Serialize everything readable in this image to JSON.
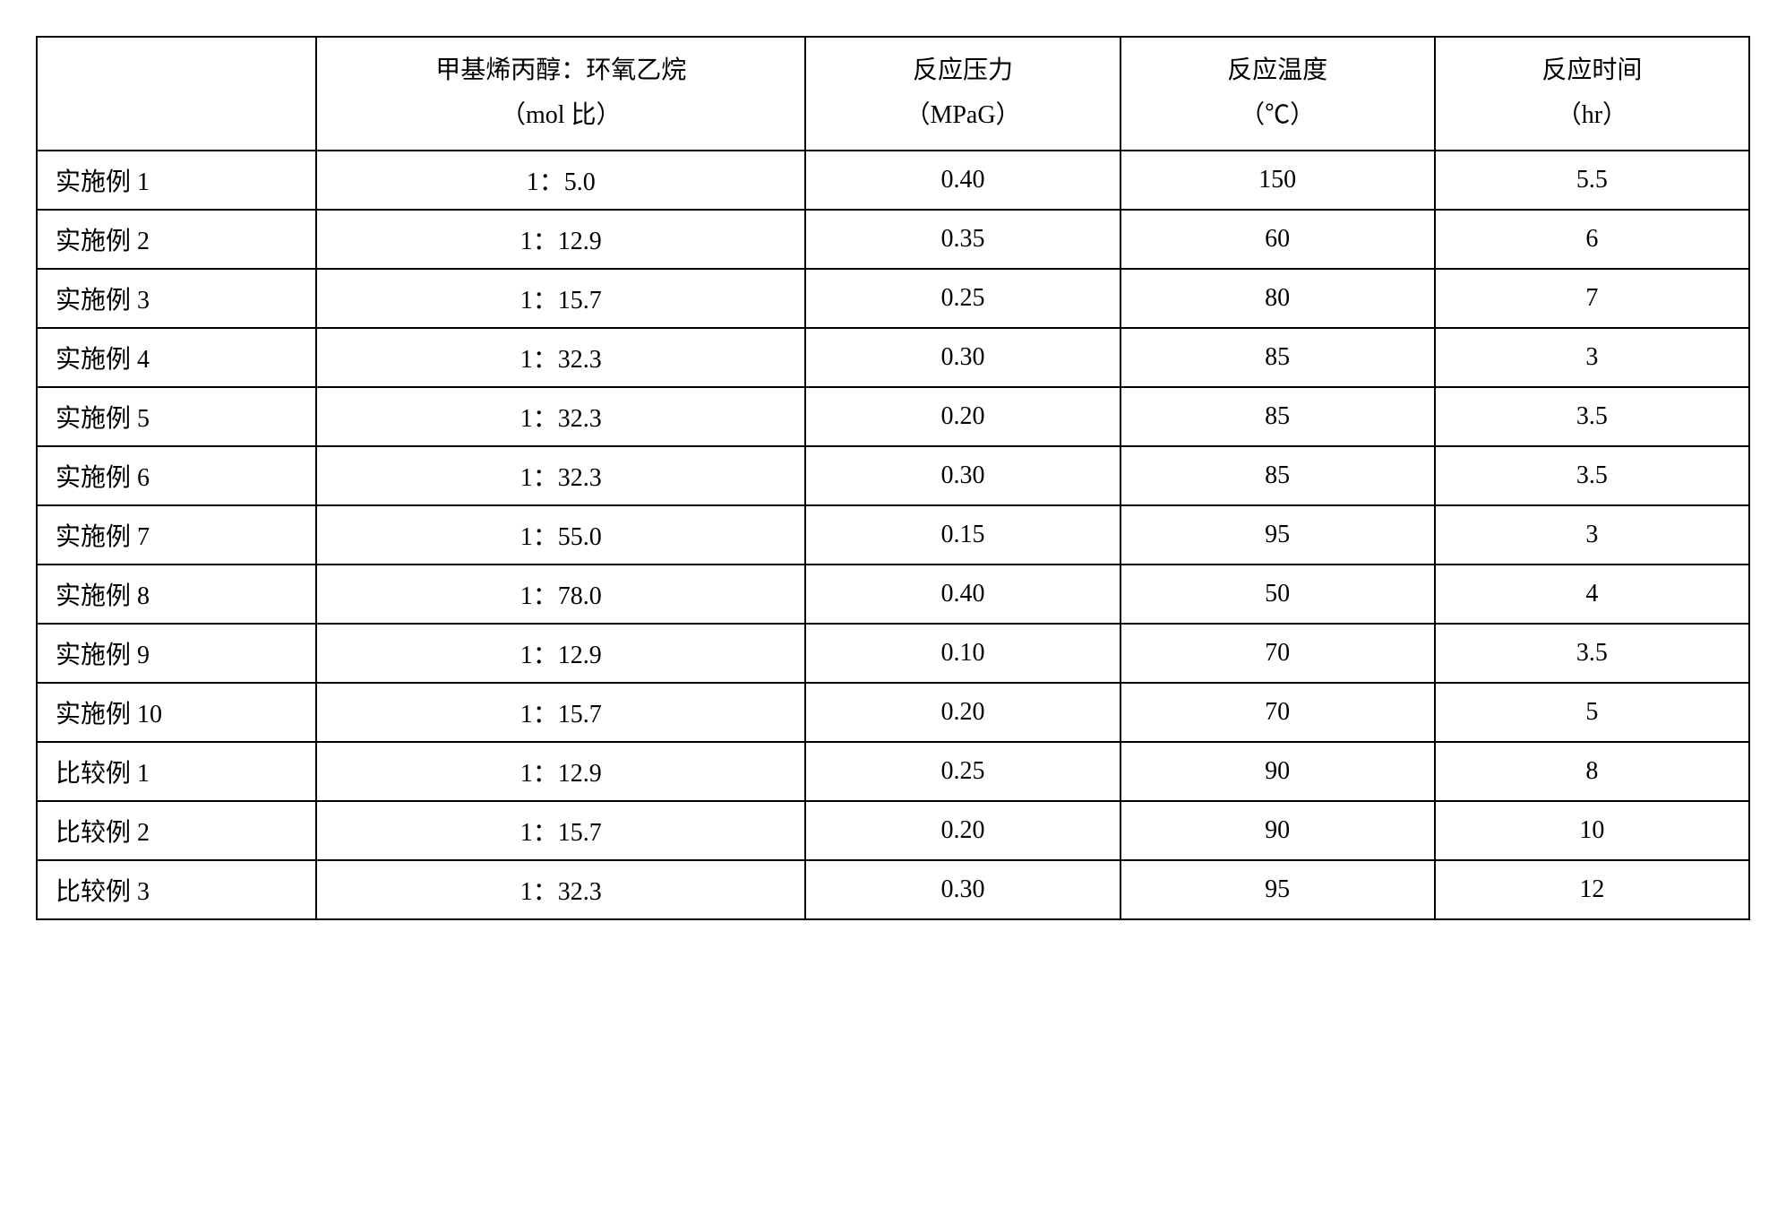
{
  "table": {
    "columns": [
      {
        "line1": "",
        "line2": ""
      },
      {
        "line1": "甲基烯丙醇：环氧乙烷",
        "line2": "（mol 比）"
      },
      {
        "line1": "反应压力",
        "line2": "（MPaG）"
      },
      {
        "line1": "反应温度",
        "line2": "（℃）"
      },
      {
        "line1": "反应时间",
        "line2": "（hr）"
      }
    ],
    "rows": [
      {
        "label": "实施例 1",
        "ratio": "1：5.0",
        "pressure": "0.40",
        "temp": "150",
        "time": "5.5"
      },
      {
        "label": "实施例 2",
        "ratio": "1：12.9",
        "pressure": "0.35",
        "temp": "60",
        "time": "6"
      },
      {
        "label": "实施例 3",
        "ratio": "1：15.7",
        "pressure": "0.25",
        "temp": "80",
        "time": "7"
      },
      {
        "label": "实施例 4",
        "ratio": "1：32.3",
        "pressure": "0.30",
        "temp": "85",
        "time": "3"
      },
      {
        "label": "实施例 5",
        "ratio": "1：32.3",
        "pressure": "0.20",
        "temp": "85",
        "time": "3.5"
      },
      {
        "label": "实施例 6",
        "ratio": "1：32.3",
        "pressure": "0.30",
        "temp": "85",
        "time": "3.5"
      },
      {
        "label": "实施例 7",
        "ratio": "1：55.0",
        "pressure": "0.15",
        "temp": "95",
        "time": "3"
      },
      {
        "label": "实施例 8",
        "ratio": "1：78.0",
        "pressure": "0.40",
        "temp": "50",
        "time": "4"
      },
      {
        "label": "实施例 9",
        "ratio": "1：12.9",
        "pressure": "0.10",
        "temp": "70",
        "time": "3.5"
      },
      {
        "label": "实施例 10",
        "ratio": "1：15.7",
        "pressure": "0.20",
        "temp": "70",
        "time": "5"
      },
      {
        "label": "比较例 1",
        "ratio": "1：12.9",
        "pressure": "0.25",
        "temp": "90",
        "time": "8"
      },
      {
        "label": "比较例 2",
        "ratio": "1：15.7",
        "pressure": "0.20",
        "temp": "90",
        "time": "10"
      },
      {
        "label": "比较例 3",
        "ratio": "1：32.3",
        "pressure": "0.30",
        "temp": "95",
        "time": "12"
      }
    ],
    "border_color": "#000000",
    "background_color": "#ffffff",
    "font_size_pt": 21,
    "header_font_size_pt": 21
  }
}
